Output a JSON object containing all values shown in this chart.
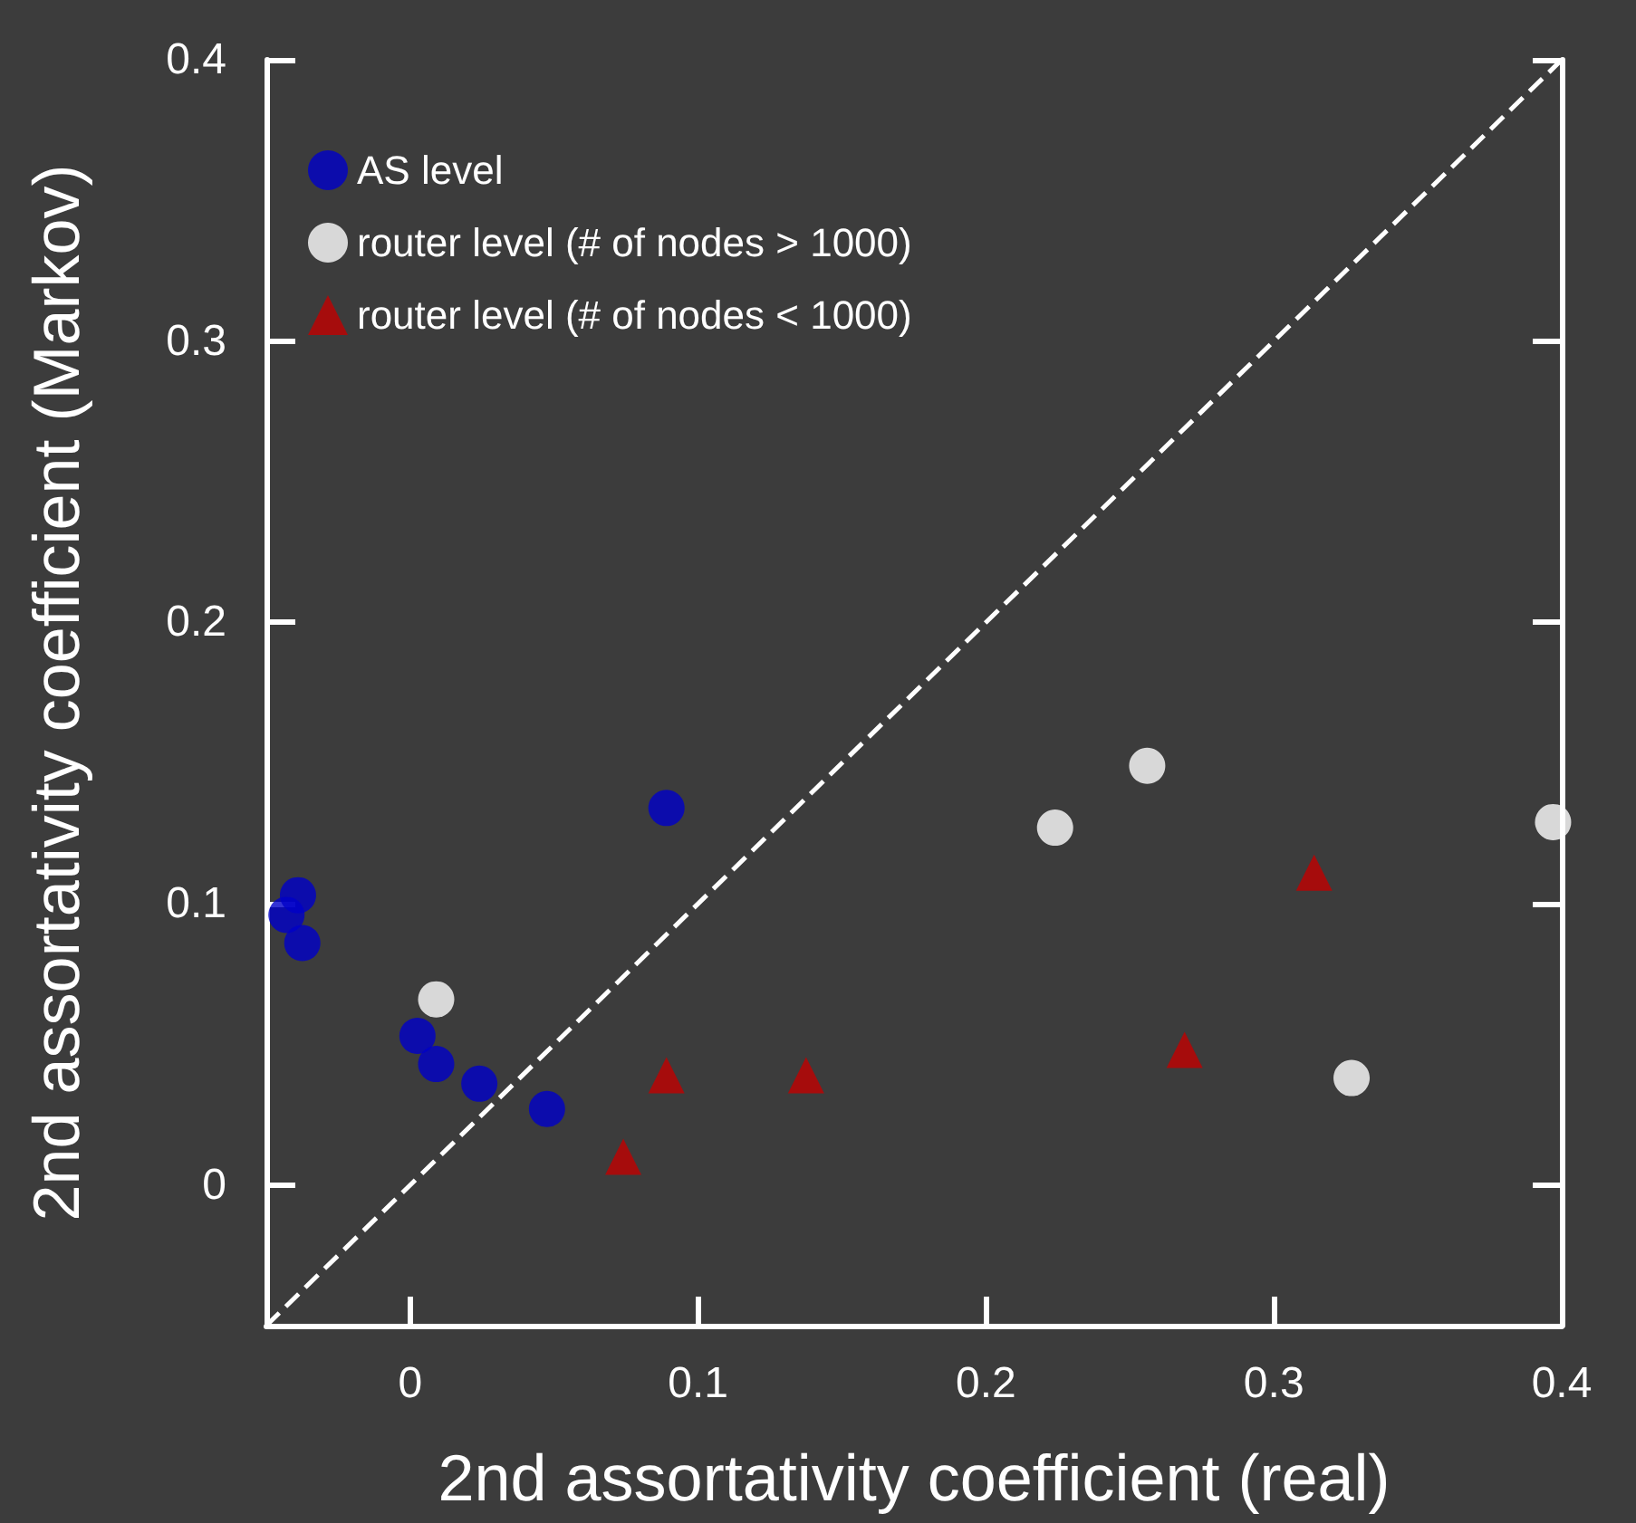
{
  "chart_data": {
    "type": "scatter",
    "xlabel": "2nd assortativity coefficient (real)",
    "ylabel": "2nd assortativity coefficient (Markov)",
    "xlim": [
      -0.05,
      0.4
    ],
    "xticks": [
      0,
      0.1,
      0.2,
      0.3,
      0.4
    ],
    "ylim": [
      -0.05,
      0.4
    ],
    "yticks": [
      0,
      0.1,
      0.2,
      0.3,
      0.4
    ],
    "grid": false,
    "legend": "top left",
    "series": [
      {
        "name": "AS level",
        "color": "#0000c8",
        "marker": "circle",
        "x": [
          0.089,
          -0.039,
          -0.043,
          -0.0375,
          0.0025,
          0.009,
          0.024,
          0.0475
        ],
        "values": [
          0.134,
          0.103,
          0.096,
          0.086,
          0.053,
          0.043,
          0.036,
          0.027
        ]
      },
      {
        "name": "router level (# of nodes > 1000)",
        "color": "#ffffff",
        "marker": "circle",
        "x": [
          0.009,
          0.256,
          0.224,
          0.397,
          0.327
        ],
        "values": [
          0.066,
          0.149,
          0.127,
          0.129,
          0.038
        ]
      },
      {
        "name": "router level (# of nodes < 1000)",
        "color": "#c00000",
        "marker": "triangle",
        "x": [
          0.074,
          0.089,
          0.1375,
          0.314,
          0.269
        ],
        "values": [
          0.01,
          0.039,
          0.039,
          0.111,
          0.048
        ]
      },
      {
        "type": "line",
        "color": "#ffffff",
        "line_style": "dashed",
        "marker": "none",
        "x": [
          -0.05,
          0.4
        ],
        "values": [
          -0.05,
          0.4
        ]
      }
    ]
  }
}
